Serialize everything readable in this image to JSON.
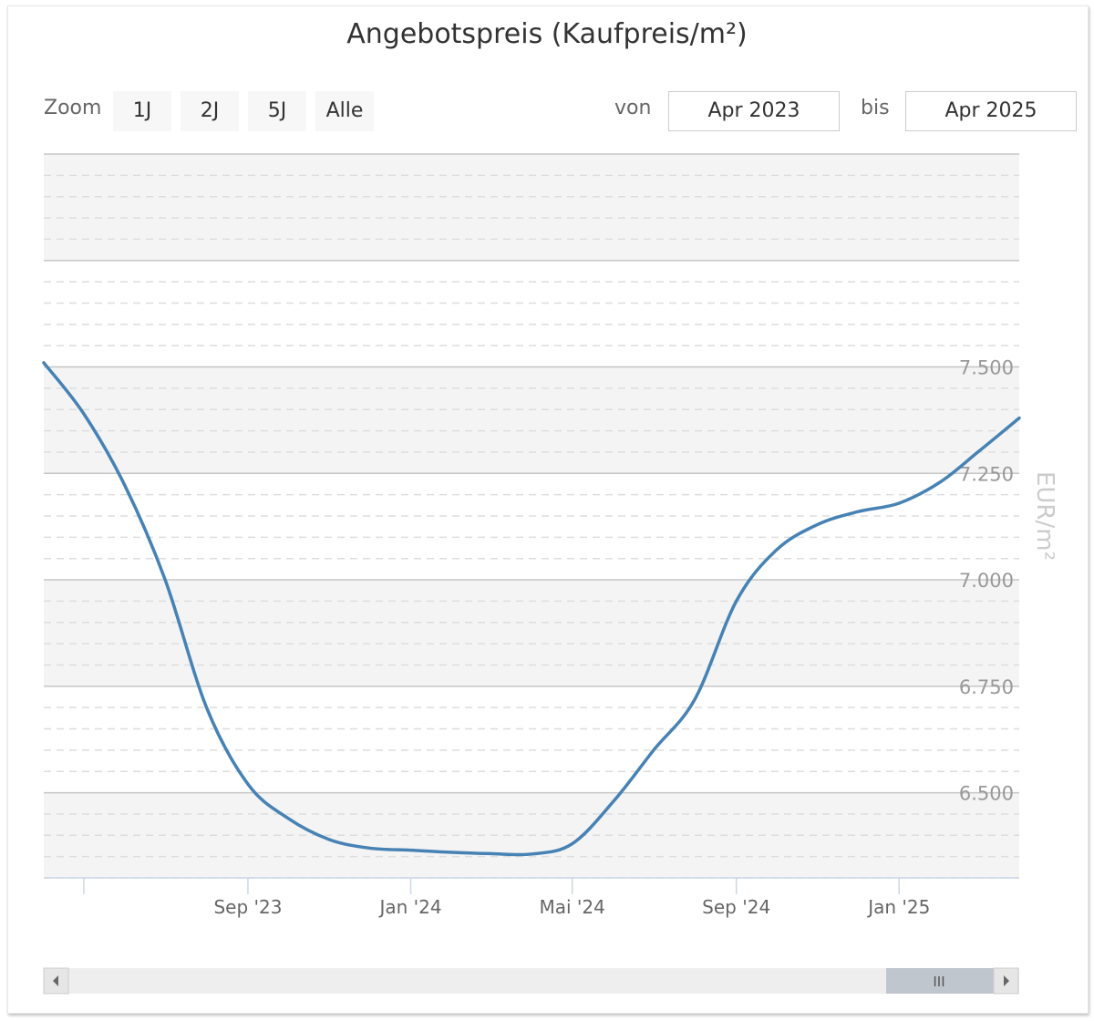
{
  "header": {
    "title": "Angebotspreis (Kaufpreis/m²)"
  },
  "toolbar": {
    "zoom_label": "Zoom",
    "zoom_buttons": [
      "1J",
      "2J",
      "5J",
      "Alle"
    ],
    "from_label": "von",
    "from_value": "Apr 2023",
    "to_label": "bis",
    "to_value": "Apr 2025"
  },
  "scrollbar": {
    "grip": "III"
  },
  "chart_data": {
    "type": "line",
    "title": "Angebotspreis (Kaufpreis/m²)",
    "ylabel": "EUR/m²",
    "xlabel": "",
    "ylim": [
      6.3,
      8.0
    ],
    "xlim": [
      "2023-04-01",
      "2025-04-01"
    ],
    "yticks": [
      {
        "value": 6.5,
        "label": "6.500"
      },
      {
        "value": 6.75,
        "label": "6.750"
      },
      {
        "value": 7.0,
        "label": "7.000"
      },
      {
        "value": 7.25,
        "label": "7.250"
      },
      {
        "value": 7.5,
        "label": "7.500"
      }
    ],
    "xticks": [
      {
        "date": "2023-05-01",
        "label": ""
      },
      {
        "date": "2023-09-01",
        "label": "Sep '23"
      },
      {
        "date": "2024-01-01",
        "label": "Jan '24"
      },
      {
        "date": "2024-05-01",
        "label": "Mai '24"
      },
      {
        "date": "2024-09-01",
        "label": "Sep '24"
      },
      {
        "date": "2025-01-01",
        "label": "Jan '25"
      }
    ],
    "grid": true,
    "color": "#4682b4",
    "series": [
      {
        "values": [
          {
            "date": "2023-04-01",
            "y": 7.51
          },
          {
            "date": "2023-05-01",
            "y": 7.39
          },
          {
            "date": "2023-06-01",
            "y": 7.22
          },
          {
            "date": "2023-07-01",
            "y": 7.0
          },
          {
            "date": "2023-08-01",
            "y": 6.7
          },
          {
            "date": "2023-09-01",
            "y": 6.52
          },
          {
            "date": "2023-10-01",
            "y": 6.44
          },
          {
            "date": "2023-11-01",
            "y": 6.39
          },
          {
            "date": "2023-12-01",
            "y": 6.37
          },
          {
            "date": "2024-01-01",
            "y": 6.365
          },
          {
            "date": "2024-02-01",
            "y": 6.36
          },
          {
            "date": "2024-03-01",
            "y": 6.357
          },
          {
            "date": "2024-04-01",
            "y": 6.356
          },
          {
            "date": "2024-05-01",
            "y": 6.38
          },
          {
            "date": "2024-06-01",
            "y": 6.48
          },
          {
            "date": "2024-07-01",
            "y": 6.6
          },
          {
            "date": "2024-08-01",
            "y": 6.72
          },
          {
            "date": "2024-09-01",
            "y": 6.95
          },
          {
            "date": "2024-10-01",
            "y": 7.07
          },
          {
            "date": "2024-11-01",
            "y": 7.13
          },
          {
            "date": "2024-12-01",
            "y": 7.16
          },
          {
            "date": "2025-01-01",
            "y": 7.18
          },
          {
            "date": "2025-02-01",
            "y": 7.23
          },
          {
            "date": "2025-03-01",
            "y": 7.3
          },
          {
            "date": "2025-04-01",
            "y": 7.38
          }
        ]
      }
    ]
  }
}
